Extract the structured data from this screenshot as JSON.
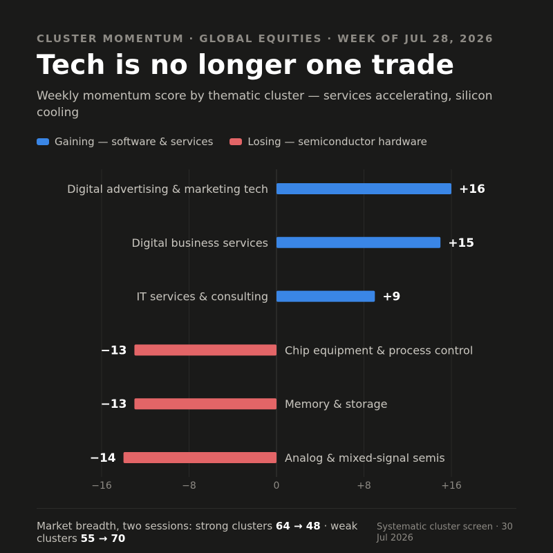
{
  "header": {
    "eyebrow": "CLUSTER MOMENTUM · GLOBAL EQUITIES · WEEK OF JUL 28, 2026",
    "title": "Tech is no longer one trade",
    "subtitle": "Weekly momentum score by thematic cluster — services accelerating, silicon cooling"
  },
  "legend": [
    {
      "label": "Gaining — software & services",
      "color": "#3a86e6"
    },
    {
      "label": "Losing — semiconductor hardware",
      "color": "#e36567"
    }
  ],
  "chart_data": {
    "type": "bar",
    "orientation": "horizontal",
    "categories": [
      "Digital advertising & marketing tech",
      "Digital business services",
      "IT services & consulting",
      "Chip equipment & process control",
      "Memory & storage",
      "Analog & mixed-signal semis"
    ],
    "values": [
      16,
      15,
      9,
      -13,
      -13,
      -14
    ],
    "value_labels": [
      "+16",
      "+15",
      "+9",
      "−13",
      "−13",
      "−14"
    ],
    "xlim": [
      -16,
      16
    ],
    "xticks": [
      -16,
      -8,
      0,
      8,
      16
    ],
    "xtick_labels": [
      "−16",
      "−8",
      "0",
      "+8",
      "+16"
    ],
    "grid": true,
    "colors": {
      "positive": "#3a86e6",
      "negative": "#e36567"
    }
  },
  "footer": {
    "breadth_prefix": "Market breadth, two sessions: strong clusters ",
    "strong_change": "64 → 48",
    "breadth_mid": " · weak clusters ",
    "weak_change": "55 → 70",
    "source": "Systematic cluster screen · 30 Jul 2026"
  }
}
